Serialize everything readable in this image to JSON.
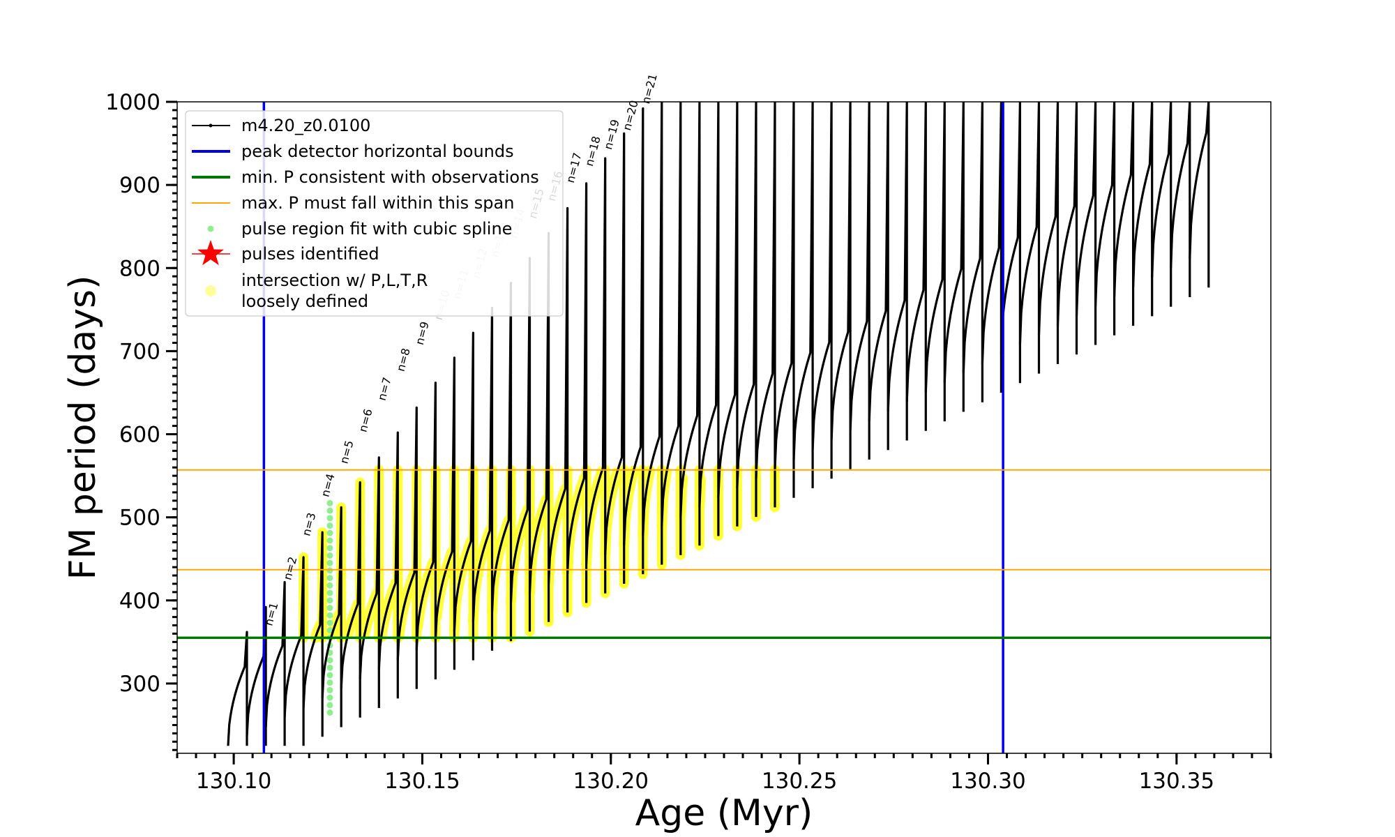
{
  "chart_data": {
    "type": "line",
    "xlabel": "Age (Myr)",
    "ylabel": "FM period (days)",
    "xlim": [
      130.085,
      130.375
    ],
    "ylim": [
      216,
      1000
    ],
    "x_ticks": [
      130.1,
      130.15,
      130.2,
      130.25,
      130.3,
      130.35
    ],
    "x_tick_labels": [
      "130.10",
      "130.15",
      "130.20",
      "130.25",
      "130.30",
      "130.35"
    ],
    "y_ticks": [
      300,
      400,
      500,
      600,
      700,
      800,
      900,
      1000
    ],
    "y_tick_labels": [
      "300",
      "400",
      "500",
      "600",
      "700",
      "800",
      "900",
      "1000"
    ],
    "x_minor_step": 0.005,
    "y_minor_step": 10,
    "legend_position": "upper-left",
    "legend": [
      {
        "label": "m4.20_z0.0100",
        "style": "line-dot",
        "color": "#000000"
      },
      {
        "label": "peak detector horizontal bounds",
        "style": "line",
        "color": "#0000ee"
      },
      {
        "label": "min. P consistent with observations",
        "style": "line",
        "color": "#007700"
      },
      {
        "label": "max. P must fall within this span",
        "style": "line-thin",
        "color": "#ffa500"
      },
      {
        "label": "pulse region fit with cubic spline",
        "style": "dot",
        "color": "#90ee90"
      },
      {
        "label": "pulses identified",
        "style": "star",
        "color": "#ff0000"
      },
      {
        "label": "intersection w/ P,L,T,R",
        "label2": "loosely defined",
        "style": "dot",
        "color": "#ffff99"
      }
    ],
    "vertical_bounds": [
      130.108,
      130.304
    ],
    "min_period": 355,
    "max_period_span": [
      437,
      557
    ],
    "series_name": "m4.20_z0.0100",
    "cycle_start": 130.0985,
    "cycle_period": 0.005,
    "cycle_count": 52,
    "pulses": [
      {
        "label": "n=1",
        "age": 130.1105,
        "period": 362,
        "faded": false
      },
      {
        "label": "n=2",
        "age": 130.1155,
        "period": 417,
        "faded": false
      },
      {
        "label": "n=3",
        "age": 130.1205,
        "period": 470,
        "faded": false
      },
      {
        "label": "n=4",
        "age": 130.1255,
        "period": 517,
        "faded": false
      },
      {
        "label": "n=5",
        "age": 130.1305,
        "period": 557,
        "faded": false
      },
      {
        "label": "n=6",
        "age": 130.1355,
        "period": 595,
        "faded": false
      },
      {
        "label": "n=7",
        "age": 130.1405,
        "period": 633,
        "faded": false
      },
      {
        "label": "n=8",
        "age": 130.1455,
        "period": 668,
        "faded": false
      },
      {
        "label": "n=9",
        "age": 130.1505,
        "period": 700,
        "faded": false
      },
      {
        "label": "n=10",
        "age": 130.1555,
        "period": 730,
        "faded": true
      },
      {
        "label": "n=11",
        "age": 130.1605,
        "period": 755,
        "faded": true
      },
      {
        "label": "n=12",
        "age": 130.1655,
        "period": 780,
        "faded": true
      },
      {
        "label": "n=13",
        "age": 130.1705,
        "period": 805,
        "faded": true
      },
      {
        "label": "n=14",
        "age": 130.1755,
        "period": 828,
        "faded": true
      },
      {
        "label": "n=15",
        "age": 130.1805,
        "period": 852,
        "faded": false
      },
      {
        "label": "n=16",
        "age": 130.1855,
        "period": 873,
        "faded": false
      },
      {
        "label": "n=17",
        "age": 130.1905,
        "period": 895,
        "faded": false
      },
      {
        "label": "n=18",
        "age": 130.1955,
        "period": 915,
        "faded": false
      },
      {
        "label": "n=19",
        "age": 130.2005,
        "period": 935,
        "faded": false
      },
      {
        "label": "n=20",
        "age": 130.2055,
        "period": 958,
        "faded": false
      },
      {
        "label": "n=21",
        "age": 130.2105,
        "period": 990,
        "faded": false
      }
    ]
  }
}
